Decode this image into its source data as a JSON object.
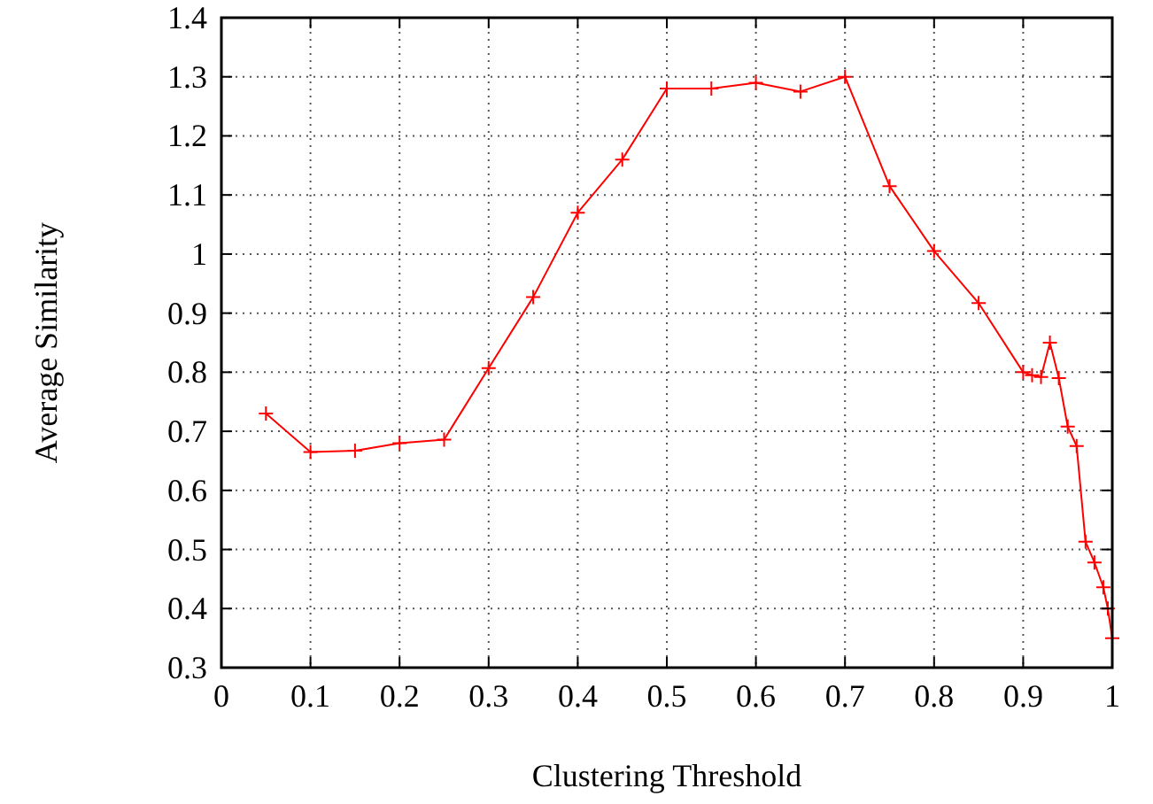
{
  "chart_data": {
    "type": "line",
    "xlabel": "Clustering Threshold",
    "ylabel": "Average Similarity",
    "x": [
      0.05,
      0.1,
      0.15,
      0.2,
      0.25,
      0.3,
      0.35,
      0.4,
      0.45,
      0.5,
      0.55,
      0.6,
      0.65,
      0.7,
      0.75,
      0.8,
      0.85,
      0.9,
      0.91,
      0.92,
      0.93,
      0.94,
      0.95,
      0.96,
      0.97,
      0.98,
      0.99,
      0.995,
      1
    ],
    "series": [
      {
        "color": "#ff0000",
        "values": [
          0.73,
          0.665,
          0.667,
          0.68,
          0.686,
          0.807,
          0.927,
          1.07,
          1.16,
          1.28,
          1.28,
          1.29,
          1.275,
          1.3,
          1.115,
          1.005,
          0.917,
          0.8,
          0.795,
          0.792,
          0.85,
          0.79,
          0.708,
          0.675,
          0.513,
          0.478,
          0.436,
          0.4,
          0.35
        ]
      }
    ],
    "xlim": [
      0,
      1
    ],
    "xticks": [
      0,
      0.1,
      0.2,
      0.3,
      0.4,
      0.5,
      0.6,
      0.7,
      0.8,
      0.9,
      1
    ],
    "ylim": [
      0.3,
      1.4
    ],
    "yticks": [
      0.3,
      0.4,
      0.5,
      0.6,
      0.7,
      0.8,
      0.9,
      1,
      1.1,
      1.2,
      1.3,
      1.4
    ],
    "grid": true,
    "marker": "cross",
    "line_style": "solid"
  }
}
